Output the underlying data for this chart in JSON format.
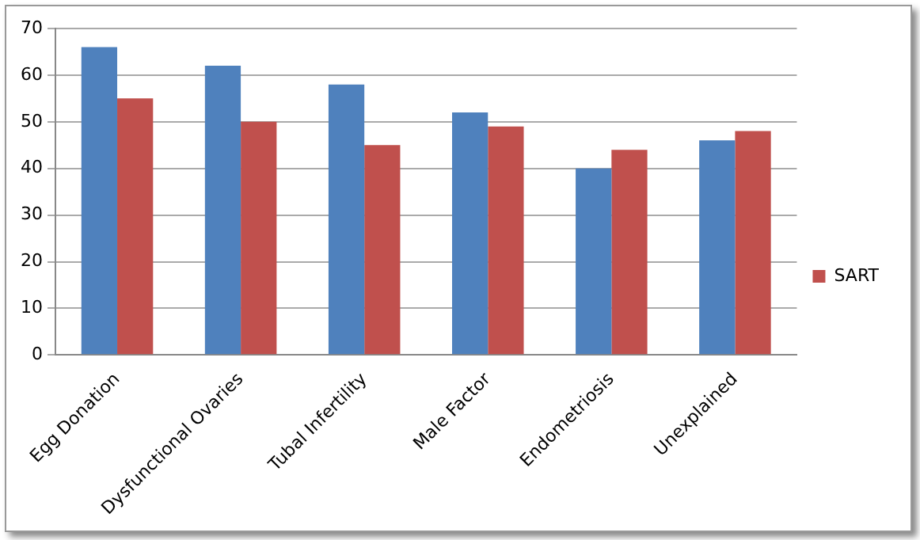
{
  "chart_data": {
    "type": "bar",
    "categories": [
      "Egg Donation",
      "Dysfunctional Ovaries",
      "Tubal Infertility",
      "Male Factor",
      "Endometriosis",
      "Unexplained"
    ],
    "series": [
      {
        "color": "#4f81bd",
        "values": [
          66,
          62,
          58,
          52,
          40,
          46
        ]
      },
      {
        "name": "SART",
        "color": "#c0504d",
        "values": [
          55,
          50,
          45,
          49,
          44,
          48
        ]
      }
    ],
    "ylim": [
      0,
      70
    ],
    "yticks": [
      0,
      10,
      20,
      30,
      40,
      50,
      60,
      70
    ],
    "grid": "y",
    "legend": "right"
  }
}
